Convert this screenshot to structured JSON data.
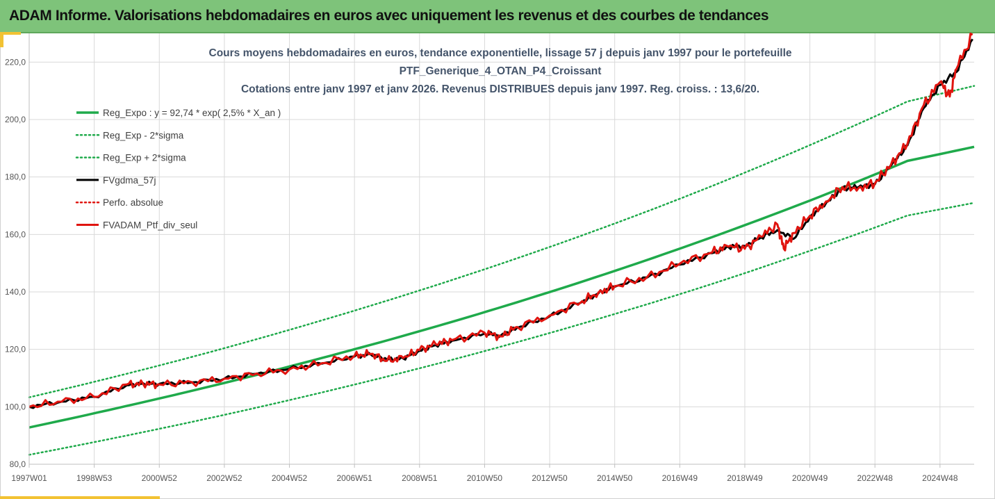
{
  "banner": {
    "title": "ADAM Informe. Valorisations hebdomadaires en euros avec uniquement les revenus et des courbes de tendances",
    "bg_color": "#7ec37a"
  },
  "chart_data": {
    "type": "line",
    "title": [
      "Cours moyens hebdomadaires  en euros, tendance exponentielle, lissage 57 j depuis janv 1997 pour le portefeuille",
      "PTF_Generique_4_OTAN_P4_Croissant",
      "Cotations entre janv 1997 et janv 2026. Revenus DISTRIBUES depuis janv 1997. Reg. croiss. : 13,6/20."
    ],
    "xlabel": "",
    "ylabel": "",
    "x_range": [
      1997.0,
      2026.05
    ],
    "ylim": [
      80,
      230
    ],
    "y_ticks": [
      80,
      100,
      120,
      140,
      160,
      180,
      200,
      220
    ],
    "y_tick_labels": [
      "80,0",
      "100,0",
      "120,0",
      "140,0",
      "160,0",
      "180,0",
      "200,0",
      "220,0"
    ],
    "x_ticks": [
      1997.0,
      1999.0,
      2001.0,
      2003.0,
      2005.0,
      2007.0,
      2009.0,
      2011.0,
      2013.0,
      2015.0,
      2017.0,
      2019.0,
      2021.0,
      2023.0,
      2025.0
    ],
    "x_tick_labels": [
      "1997W01",
      "1998W53",
      "2000W52",
      "2002W52",
      "2004W52",
      "2006W51",
      "2008W51",
      "2010W50",
      "2012W50",
      "2014W50",
      "2016W49",
      "2018W49",
      "2020W49",
      "2022W48",
      "2024W48"
    ],
    "grid": true,
    "legend_position": "upper-left",
    "series": [
      {
        "name": "Reg_Expo : y = 92,74 * exp( 2,5% *  X_an )",
        "color": "#1faa4b",
        "style": "solid",
        "width": 3.5,
        "x": [
          1997.0,
          2000.0,
          2003.0,
          2006.0,
          2009.0,
          2012.0,
          2015.0,
          2018.0,
          2021.0,
          2024.0,
          2026.05
        ],
        "values": [
          92.8,
          100.3,
          108.3,
          117.0,
          126.3,
          136.4,
          147.3,
          159.1,
          171.8,
          185.6,
          190.5
        ]
      },
      {
        "name": "Reg_Exp - 2*sigma",
        "color": "#1faa4b",
        "style": "dotted",
        "width": 2.5,
        "x": [
          1997.0,
          2000.0,
          2003.0,
          2006.0,
          2009.0,
          2012.0,
          2015.0,
          2018.0,
          2021.0,
          2024.0,
          2026.05
        ],
        "values": [
          83.3,
          90.0,
          97.2,
          105.0,
          113.4,
          122.5,
          132.3,
          142.8,
          154.3,
          166.6,
          171.0
        ]
      },
      {
        "name": "Reg_Exp + 2*sigma",
        "color": "#1faa4b",
        "style": "dotted",
        "width": 2.5,
        "x": [
          1997.0,
          2000.0,
          2003.0,
          2006.0,
          2009.0,
          2012.0,
          2015.0,
          2018.0,
          2021.0,
          2024.0,
          2026.05
        ],
        "values": [
          103.3,
          111.5,
          120.4,
          130.1,
          140.5,
          151.7,
          163.8,
          176.9,
          191.1,
          206.3,
          211.7
        ]
      },
      {
        "name": "FVgdma_57j",
        "color": "#000000",
        "style": "solid",
        "width": 3.0,
        "x": [
          1997.0,
          1998.0,
          1999.0,
          2000.0,
          2000.5,
          2001.0,
          2002.0,
          2003.0,
          2004.0,
          2005.0,
          2006.0,
          2007.0,
          2007.5,
          2008.0,
          2008.5,
          2009.0,
          2009.5,
          2010.0,
          2011.0,
          2011.5,
          2012.0,
          2013.0,
          2014.0,
          2014.5,
          2015.0,
          2016.0,
          2017.0,
          2018.0,
          2018.5,
          2019.0,
          2019.5,
          2020.0,
          2020.5,
          2021.0,
          2021.5,
          2022.0,
          2022.5,
          2023.0,
          2023.5,
          2024.0,
          2024.5,
          2025.0,
          2025.5,
          2026.0
        ],
        "values": [
          100.0,
          101.8,
          103.5,
          107.5,
          108.2,
          108.0,
          108.5,
          109.8,
          111.5,
          113.2,
          115.0,
          117.5,
          118.2,
          116.5,
          116.8,
          119.5,
          121.5,
          123.0,
          125.5,
          124.8,
          127.5,
          131.5,
          136.5,
          139.5,
          141.8,
          145.0,
          149.5,
          153.5,
          155.6,
          156.0,
          159.0,
          161.5,
          158.5,
          166.0,
          171.0,
          176.0,
          176.5,
          177.5,
          184.0,
          191.0,
          204.0,
          212.0,
          216.5,
          228.0
        ]
      },
      {
        "name": "Perfo. absolue",
        "color": "#e0140f",
        "style": "dotted",
        "width": 2.5,
        "x": [],
        "values": []
      },
      {
        "name": "FVADAM_Ptf_div_seul",
        "color": "#e0140f",
        "style": "solid",
        "width": 3.0,
        "x": [
          1997.0,
          1998.0,
          1999.0,
          2000.0,
          2000.5,
          2001.0,
          2002.0,
          2003.0,
          2004.0,
          2005.0,
          2006.0,
          2007.0,
          2007.5,
          2008.0,
          2008.5,
          2009.0,
          2009.5,
          2010.0,
          2011.0,
          2011.5,
          2012.0,
          2013.0,
          2014.0,
          2014.5,
          2015.0,
          2016.0,
          2017.0,
          2018.0,
          2018.5,
          2019.0,
          2019.5,
          2020.0,
          2020.2,
          2020.5,
          2021.0,
          2021.5,
          2022.0,
          2022.5,
          2023.0,
          2023.5,
          2024.0,
          2024.5,
          2025.0,
          2025.3,
          2025.5,
          2026.0
        ],
        "values": [
          100.0,
          101.8,
          103.4,
          107.8,
          108.0,
          107.8,
          108.6,
          109.8,
          111.6,
          113.0,
          115.2,
          117.8,
          118.4,
          116.0,
          117.0,
          119.8,
          121.8,
          123.2,
          125.8,
          124.5,
          127.8,
          131.8,
          136.8,
          139.8,
          142.0,
          145.2,
          149.8,
          153.8,
          155.8,
          155.0,
          159.2,
          163.5,
          155.0,
          160.5,
          166.5,
          171.5,
          176.5,
          176.2,
          177.8,
          184.5,
          191.5,
          205.0,
          213.0,
          208.0,
          217.5,
          229.5
        ]
      }
    ]
  }
}
